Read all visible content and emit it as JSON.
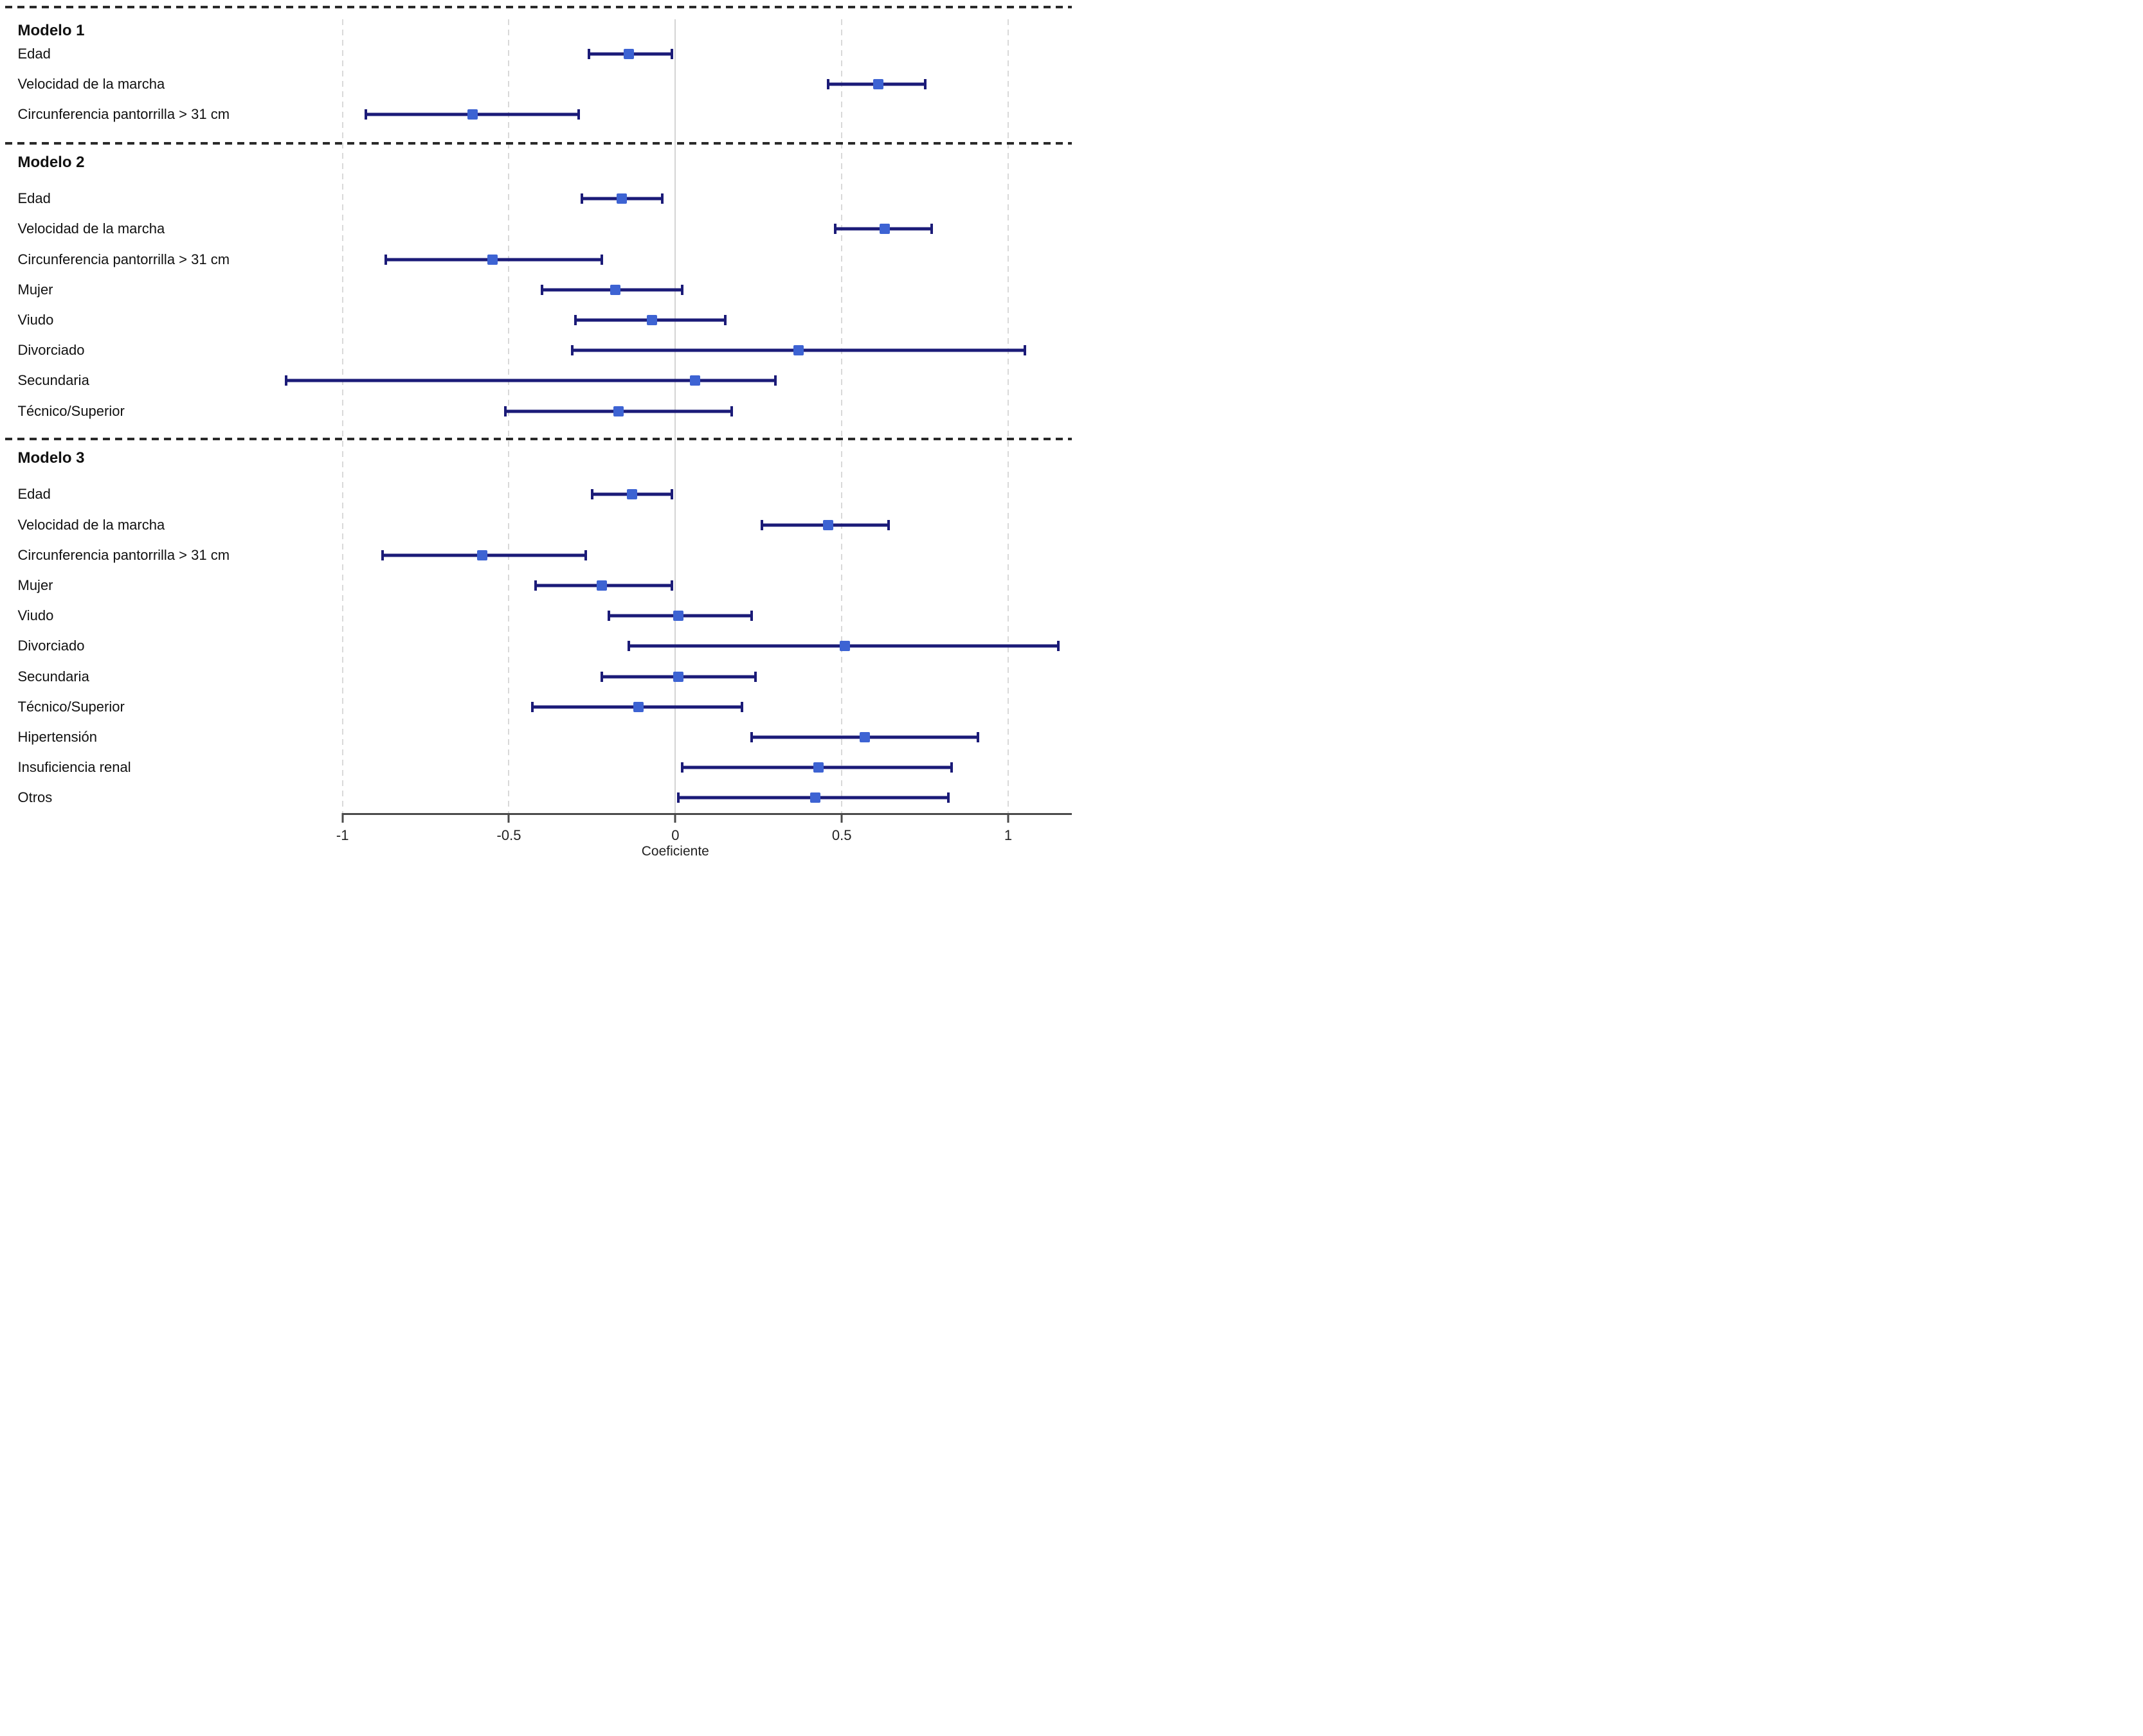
{
  "chart_data": {
    "type": "scatter",
    "variant": "forest-coefficient-plot-with-horizontal-error-bars",
    "title": "",
    "xlabel": "Coeficiente",
    "ylabel": "",
    "xlim": [
      -1.25,
      1.2
    ],
    "x_ticks": [
      -1,
      -0.5,
      0,
      0.5,
      1
    ],
    "x_tick_labels": [
      "-1",
      "-0.5",
      "0",
      "0.5",
      "1"
    ],
    "grid": "vertical dashed light-gray gridlines at each tick; solid light-gray line at 0; dashed dark horizontal separators between models",
    "legend": "none",
    "colors": {
      "estimate_marker": "#3D63D3",
      "ci_line": "#1B1B78",
      "gridline": "#D9D9D9",
      "zero_line": "#D4D4D4",
      "axis_line": "#4A4A4A",
      "separator": "#2A2A2A",
      "text": "#111111",
      "background": "#FFFFFF"
    },
    "sections": [
      {
        "model": "Modelo 1",
        "rows": [
          {
            "label": "Edad",
            "estimate": -0.14,
            "ci_low": -0.26,
            "ci_high": -0.01
          },
          {
            "label": "Velocidad de la marcha",
            "estimate": 0.61,
            "ci_low": 0.46,
            "ci_high": 0.75
          },
          {
            "label": "Circunferencia pantorrilla > 31 cm",
            "estimate": -0.61,
            "ci_low": -0.93,
            "ci_high": -0.29
          }
        ]
      },
      {
        "model": "Modelo 2",
        "rows": [
          {
            "label": "Edad",
            "estimate": -0.16,
            "ci_low": -0.28,
            "ci_high": -0.04
          },
          {
            "label": "Velocidad de la marcha",
            "estimate": 0.63,
            "ci_low": 0.48,
            "ci_high": 0.77
          },
          {
            "label": "Circunferencia pantorrilla > 31 cm",
            "estimate": -0.55,
            "ci_low": -0.87,
            "ci_high": -0.22
          },
          {
            "label": "Mujer",
            "estimate": -0.18,
            "ci_low": -0.4,
            "ci_high": 0.02
          },
          {
            "label": "Viudo",
            "estimate": -0.07,
            "ci_low": -0.3,
            "ci_high": 0.15
          },
          {
            "label": "Divorciado",
            "estimate": 0.37,
            "ci_low": -0.31,
            "ci_high": 1.05
          },
          {
            "label": "Secundaria",
            "estimate": 0.06,
            "ci_low": -1.17,
            "ci_high": 0.3
          },
          {
            "label": "Técnico/Superior",
            "estimate": -0.17,
            "ci_low": -0.51,
            "ci_high": 0.17
          }
        ]
      },
      {
        "model": "Modelo 3",
        "rows": [
          {
            "label": "Edad",
            "estimate": -0.13,
            "ci_low": -0.25,
            "ci_high": -0.01
          },
          {
            "label": "Velocidad de la marcha",
            "estimate": 0.46,
            "ci_low": 0.26,
            "ci_high": 0.64
          },
          {
            "label": "Circunferencia pantorrilla > 31 cm",
            "estimate": -0.58,
            "ci_low": -0.88,
            "ci_high": -0.27
          },
          {
            "label": "Mujer",
            "estimate": -0.22,
            "ci_low": -0.42,
            "ci_high": -0.01
          },
          {
            "label": "Viudo",
            "estimate": 0.01,
            "ci_low": -0.2,
            "ci_high": 0.23
          },
          {
            "label": "Divorciado",
            "estimate": 0.51,
            "ci_low": -0.14,
            "ci_high": 1.15
          },
          {
            "label": "Secundaria",
            "estimate": 0.01,
            "ci_low": -0.22,
            "ci_high": 0.24
          },
          {
            "label": "Técnico/Superior",
            "estimate": -0.11,
            "ci_low": -0.43,
            "ci_high": 0.2
          },
          {
            "label": "Hipertensión",
            "estimate": 0.57,
            "ci_low": 0.23,
            "ci_high": 0.91
          },
          {
            "label": "Insuficiencia renal",
            "estimate": 0.43,
            "ci_low": 0.02,
            "ci_high": 0.83
          },
          {
            "label": "Otros",
            "estimate": 0.42,
            "ci_low": 0.01,
            "ci_high": 0.82
          }
        ]
      }
    ]
  }
}
